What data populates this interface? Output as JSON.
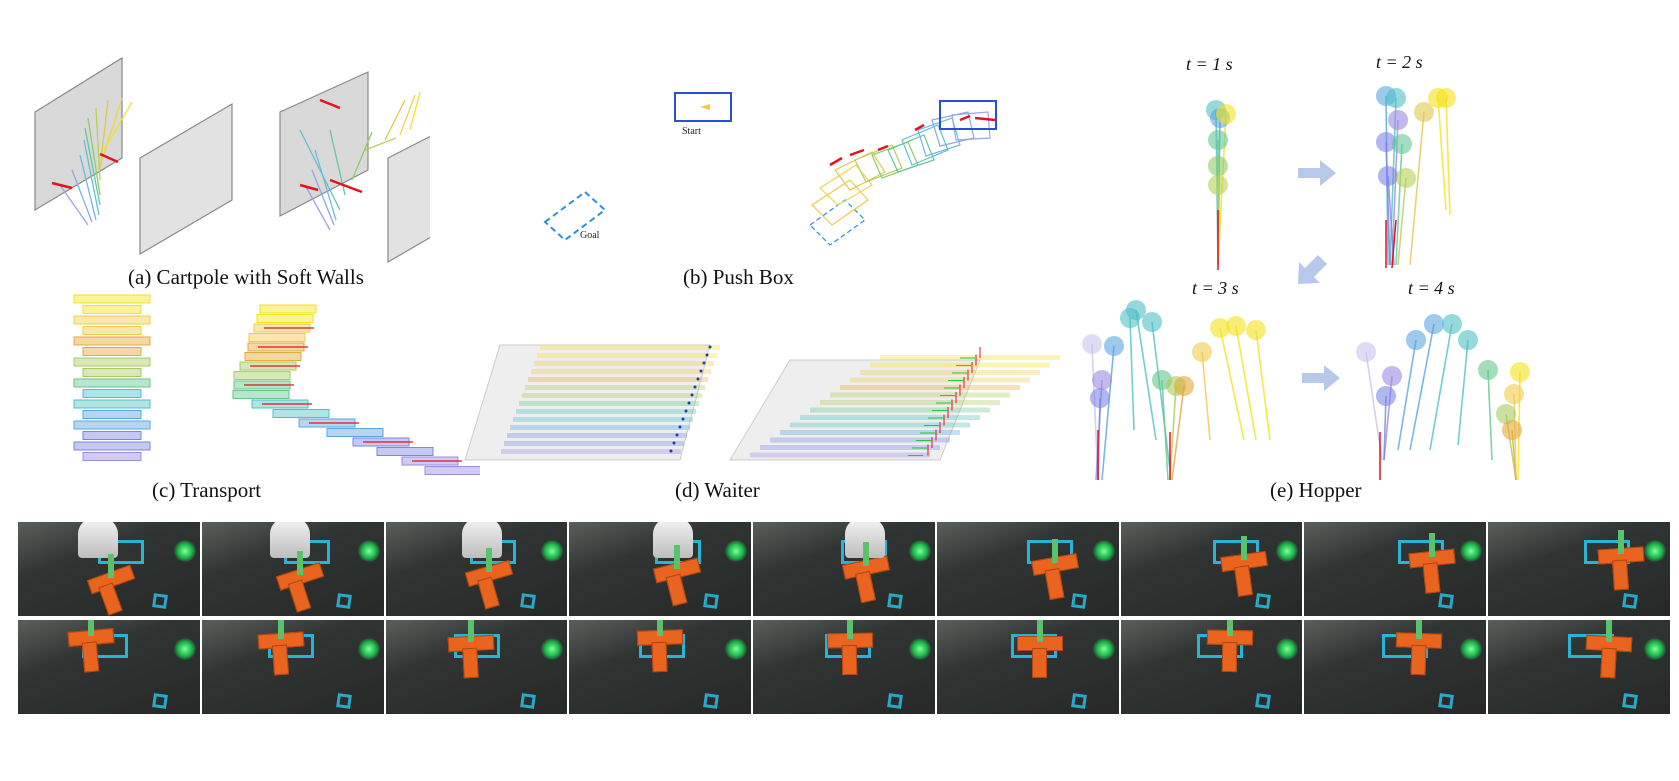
{
  "panels": {
    "cartpole": {
      "caption": "(a) Cartpole with Soft Walls"
    },
    "pushbox": {
      "caption": "(b) Push Box",
      "start_label": "Start",
      "goal_label": "Goal"
    },
    "transport": {
      "caption": "(c) Transport"
    },
    "waiter": {
      "caption": "(d) Waiter"
    },
    "hopper": {
      "caption": "(e) Hopper",
      "time_labels": [
        "t = 1 s",
        "t = 2 s",
        "t = 3 s",
        "t = 4 s"
      ]
    }
  },
  "colors": {
    "wall": "#d9d9d9",
    "force_arrow": "#e0141e",
    "box_outline": "#2a4fd8",
    "goal_dashed": "#2b8fe0",
    "flow_arrow": "#b7c9ea",
    "spectrum": [
      "#f4e21b",
      "#f2c94c",
      "#e5a93a",
      "#a8cc5e",
      "#66c58a",
      "#4fc0c4",
      "#5aa5e0",
      "#7c86e4",
      "#9c8be0"
    ]
  },
  "photo_rows": 2,
  "photo_columns": 9
}
